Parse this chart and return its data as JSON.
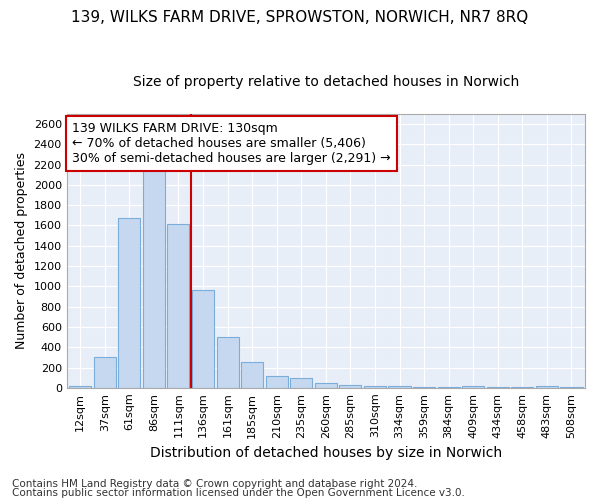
{
  "title1": "139, WILKS FARM DRIVE, SPROWSTON, NORWICH, NR7 8RQ",
  "title2": "Size of property relative to detached houses in Norwich",
  "xlabel": "Distribution of detached houses by size in Norwich",
  "ylabel": "Number of detached properties",
  "categories": [
    "12sqm",
    "37sqm",
    "61sqm",
    "86sqm",
    "111sqm",
    "136sqm",
    "161sqm",
    "185sqm",
    "210sqm",
    "235sqm",
    "260sqm",
    "285sqm",
    "310sqm",
    "334sqm",
    "359sqm",
    "384sqm",
    "409sqm",
    "434sqm",
    "458sqm",
    "483sqm",
    "508sqm"
  ],
  "values": [
    20,
    300,
    1670,
    2150,
    1610,
    960,
    500,
    250,
    120,
    100,
    45,
    30,
    15,
    20,
    10,
    5,
    20,
    5,
    5,
    20,
    5
  ],
  "bar_color": "#c5d8f0",
  "bar_edge_color": "#7aadda",
  "vline_x": 5.0,
  "vline_color": "#cc0000",
  "annotation_text": "139 WILKS FARM DRIVE: 130sqm\n← 70% of detached houses are smaller (5,406)\n30% of semi-detached houses are larger (2,291) →",
  "annotation_box_color": "#ffffff",
  "annotation_box_edge": "#cc0000",
  "ylim": [
    0,
    2700
  ],
  "yticks": [
    0,
    200,
    400,
    600,
    800,
    1000,
    1200,
    1400,
    1600,
    1800,
    2000,
    2200,
    2400,
    2600
  ],
  "footer1": "Contains HM Land Registry data © Crown copyright and database right 2024.",
  "footer2": "Contains public sector information licensed under the Open Government Licence v3.0.",
  "bg_color": "#ffffff",
  "plot_bg_color": "#e8eef8",
  "grid_color": "#ffffff",
  "title1_fontsize": 11,
  "title2_fontsize": 10,
  "xlabel_fontsize": 10,
  "ylabel_fontsize": 9,
  "tick_fontsize": 8,
  "annot_fontsize": 9,
  "footer_fontsize": 7.5
}
